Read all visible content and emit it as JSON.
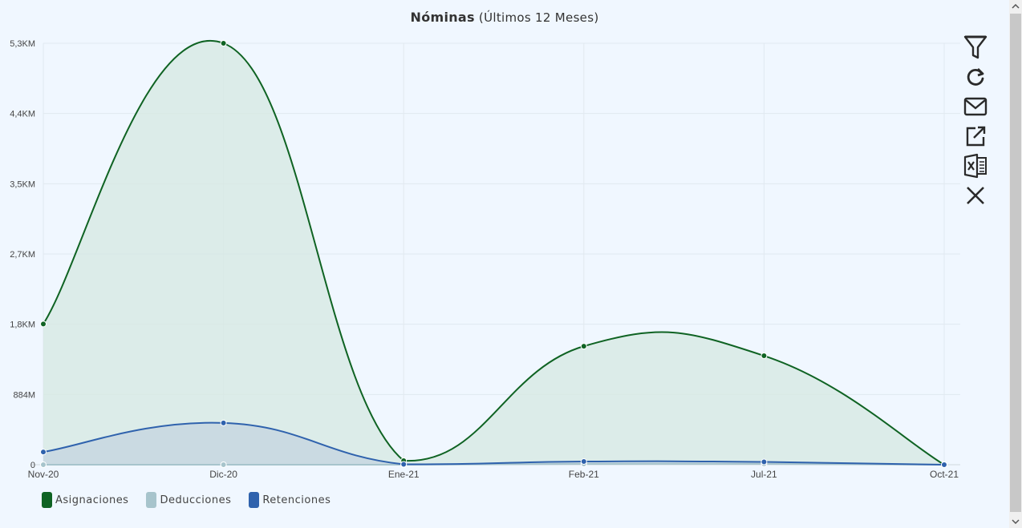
{
  "header": {
    "title_bold": "Nóminas",
    "title_rest": " (Últimos 12 Meses)"
  },
  "toolbar": {
    "icons": [
      "filter-icon",
      "refresh-icon",
      "mail-icon",
      "external-link-icon",
      "excel-icon",
      "close-icon"
    ]
  },
  "chart_data": {
    "type": "area",
    "title": "Nóminas (Últimos 12 Meses)",
    "categories": [
      "Nov-20",
      "Dic-20",
      "Ene-21",
      "Feb-21",
      "Jul-21",
      "Oct-21"
    ],
    "y_tick_labels": [
      "0",
      "884M",
      "1,8KM",
      "2,7KM",
      "3,5KM",
      "4,4KM",
      "5,3KM"
    ],
    "ylim": [
      0,
      5300
    ],
    "y_unit": "M",
    "grid": true,
    "legend_position": "bottom-left",
    "series": [
      {
        "name": "Asignaciones",
        "color": "#0f6323",
        "fill": "#d7e8e4",
        "values": [
          1770,
          5300,
          50,
          1490,
          1370,
          0
        ]
      },
      {
        "name": "Deducciones",
        "color": "#a7c4cc",
        "fill": "#c9dbe0",
        "values": [
          0,
          0,
          0,
          10,
          10,
          0
        ]
      },
      {
        "name": "Retenciones",
        "color": "#2f62ad",
        "fill": "#c6d6e0",
        "values": [
          160,
          525,
          5,
          40,
          35,
          0
        ]
      }
    ]
  }
}
